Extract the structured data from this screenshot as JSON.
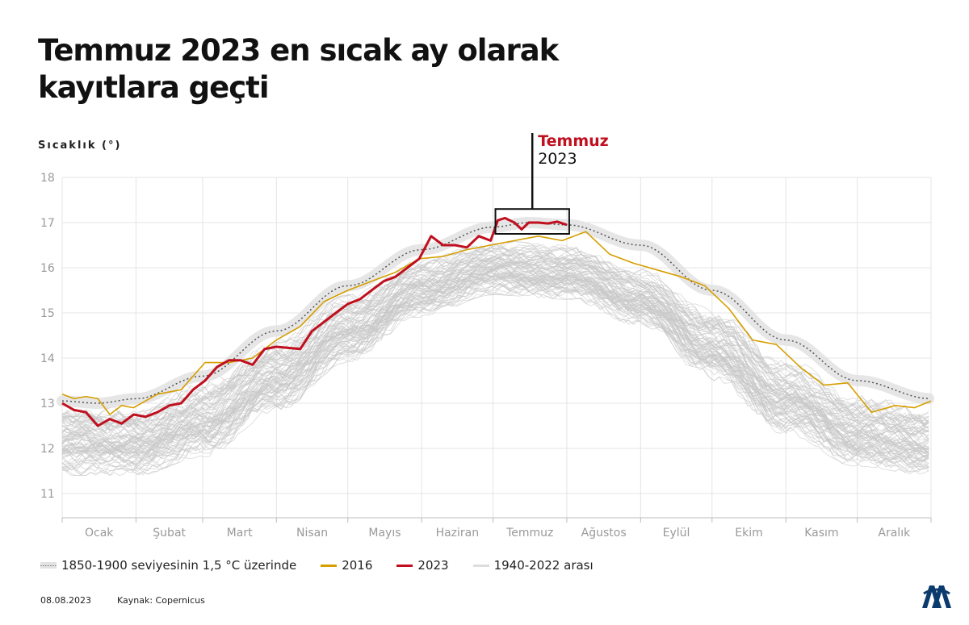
{
  "title": "Temmuz 2023 en sıcak ay olarak kayıtlara geçti",
  "footer": {
    "date": "08.08.2023",
    "source": "Kaynak: Copernicus"
  },
  "chart_data": {
    "type": "line",
    "ylabel": "Sıcaklık (°)",
    "ylim": [
      11,
      18
    ],
    "yticks": [
      11,
      12,
      13,
      14,
      15,
      16,
      17,
      18
    ],
    "xlim": [
      0,
      365
    ],
    "months": [
      "Ocak",
      "Şubat",
      "Mart",
      "Nisan",
      "Mayıs",
      "Haziran",
      "Temmuz",
      "Ağustos",
      "Eylül",
      "Ekim",
      "Kasım",
      "Aralık"
    ],
    "annotation": {
      "title": "Temmuz",
      "subtitle": "2023",
      "x_range": [
        182,
        213
      ],
      "y_range": [
        16.75,
        17.3
      ]
    },
    "colors": {
      "y2016": "#d69e00",
      "y2023": "#c0101f",
      "baseline": "#555555",
      "band": "#e2e2e2",
      "history": "#c8c8c8"
    },
    "legend": [
      "1850-1900 seviyesinin 1,5 °C üzerinde",
      "2016",
      "2023",
      "1940-2022 arası"
    ],
    "series": [
      {
        "name": "1850-1900 seviyesinin 1,5 °C üzerinde",
        "x": [
          0,
          15,
          31,
          59,
          90,
          120,
          151,
          181,
          196,
          212,
          243,
          273,
          304,
          334,
          365
        ],
        "y": [
          13.05,
          13.0,
          13.1,
          13.6,
          14.6,
          15.6,
          16.4,
          16.9,
          17.0,
          16.95,
          16.5,
          15.5,
          14.4,
          13.5,
          13.1
        ]
      },
      {
        "name": "2016",
        "x": [
          0,
          5,
          10,
          15,
          20,
          25,
          30,
          40,
          50,
          60,
          70,
          80,
          90,
          100,
          110,
          120,
          130,
          140,
          150,
          160,
          170,
          180,
          190,
          200,
          210,
          220,
          230,
          240,
          250,
          260,
          270,
          280,
          290,
          300,
          310,
          320,
          330,
          340,
          350,
          358,
          365
        ],
        "y": [
          13.2,
          13.1,
          13.15,
          13.1,
          12.75,
          12.95,
          12.9,
          13.2,
          13.3,
          13.9,
          13.9,
          14.0,
          14.4,
          14.7,
          15.25,
          15.5,
          15.7,
          15.9,
          16.2,
          16.25,
          16.4,
          16.5,
          16.6,
          16.7,
          16.6,
          16.8,
          16.3,
          16.1,
          15.95,
          15.8,
          15.6,
          15.1,
          14.4,
          14.3,
          13.8,
          13.4,
          13.45,
          12.8,
          12.95,
          12.9,
          13.05
        ]
      },
      {
        "name": "2023",
        "x": [
          0,
          5,
          10,
          15,
          20,
          25,
          30,
          35,
          40,
          45,
          50,
          55,
          60,
          65,
          70,
          75,
          80,
          85,
          90,
          100,
          105,
          110,
          115,
          120,
          125,
          130,
          135,
          140,
          145,
          150,
          155,
          160,
          165,
          170,
          175,
          180,
          183,
          186,
          190,
          193,
          196,
          200,
          204,
          208,
          212
        ],
        "y": [
          13.0,
          12.85,
          12.8,
          12.5,
          12.65,
          12.55,
          12.75,
          12.7,
          12.8,
          12.95,
          13.0,
          13.3,
          13.5,
          13.8,
          13.95,
          13.95,
          13.85,
          14.2,
          14.25,
          14.2,
          14.6,
          14.8,
          15.0,
          15.2,
          15.3,
          15.5,
          15.7,
          15.8,
          16.0,
          16.2,
          16.7,
          16.5,
          16.5,
          16.45,
          16.7,
          16.6,
          17.05,
          17.1,
          17.0,
          16.85,
          17.0,
          17.0,
          16.98,
          17.02,
          16.95
        ]
      },
      {
        "name": "1940-2022 arası",
        "x": [
          0,
          31,
          59,
          90,
          120,
          151,
          181,
          212,
          243,
          273,
          304,
          334,
          365
        ],
        "upper": [
          13.0,
          12.9,
          13.5,
          14.4,
          15.4,
          16.2,
          16.6,
          16.5,
          16.0,
          15.1,
          14.0,
          13.2,
          12.9
        ],
        "lower": [
          11.4,
          11.4,
          11.8,
          12.8,
          13.9,
          14.9,
          15.4,
          15.3,
          14.7,
          13.5,
          12.3,
          11.6,
          11.4
        ],
        "line_count": 83
      }
    ]
  }
}
